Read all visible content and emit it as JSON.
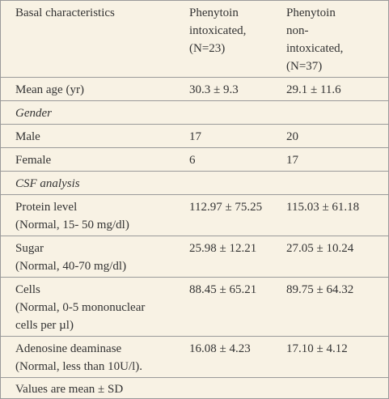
{
  "table": {
    "header": [
      [
        "Basal characteristics"
      ],
      [
        "Phenytoin",
        "intoxicated,",
        "(N=23)"
      ],
      [
        "Phenytoin",
        "non-",
        "intoxicated,",
        "(N=37)"
      ]
    ],
    "rows": [
      {
        "cells": [
          [
            "Mean age (yr)"
          ],
          [
            "30.3 ± 9.3"
          ],
          [
            "29.1 ± 11.6"
          ]
        ]
      },
      {
        "section": "Gender"
      },
      {
        "cells": [
          [
            "Male"
          ],
          [
            "17"
          ],
          [
            "20"
          ]
        ]
      },
      {
        "cells": [
          [
            "Female"
          ],
          [
            "6"
          ],
          [
            "17"
          ]
        ]
      },
      {
        "section": "CSF analysis"
      },
      {
        "cells": [
          [
            "Protein level",
            "(Normal, 15- 50 mg/dl)"
          ],
          [
            "112.97 ± 75.25"
          ],
          [
            "115.03 ± 61.18"
          ]
        ]
      },
      {
        "cells": [
          [
            "Sugar",
            "(Normal, 40-70 mg/dl)"
          ],
          [
            "25.98 ± 12.21"
          ],
          [
            "27.05 ± 10.24"
          ]
        ]
      },
      {
        "cells": [
          [
            "Cells",
            "(Normal, 0-5 mononuclear",
            "cells per µl)"
          ],
          [
            "88.45 ± 65.21"
          ],
          [
            "89.75 ± 64.32"
          ]
        ]
      },
      {
        "cells": [
          [
            "Adenosine deaminase",
            "(Normal, less than 10U/l)."
          ],
          [
            "16.08 ± 4.23"
          ],
          [
            "17.10 ± 4.12"
          ]
        ]
      }
    ],
    "footer": "Values are mean ± SD"
  }
}
